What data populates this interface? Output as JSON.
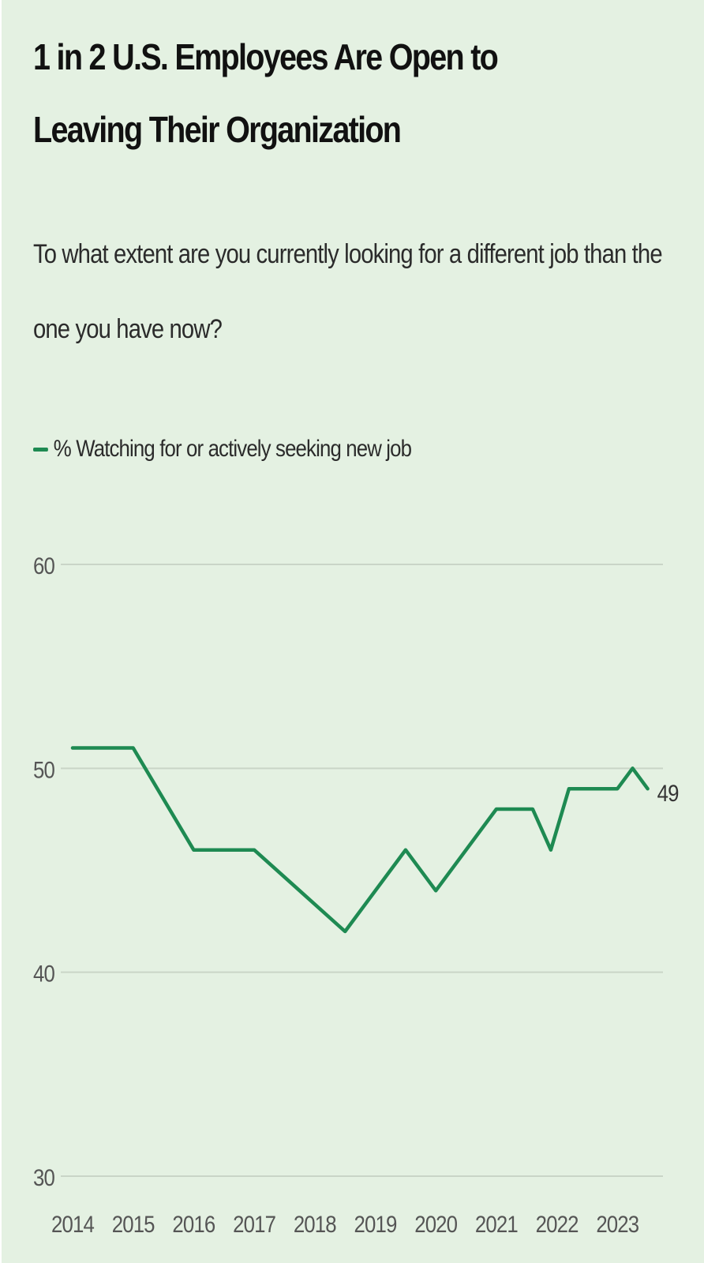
{
  "title": "1 in 2 U.S. Employees Are Open to Leaving Their Organization",
  "subtitle": "To what extent are you currently looking for a different job than the one you have now?",
  "colors": {
    "background": "#e4f1e2",
    "line": "#1e8a52",
    "grid": "#c9d5c7",
    "tick_text": "#555555"
  },
  "chart_data": {
    "type": "line",
    "title": "1 in 2 U.S. Employees Are Open to Leaving Their Organization",
    "subtitle": "To what extent are you currently looking for a different job than the one you have now?",
    "xlabel": "",
    "ylabel": "",
    "ylim": [
      30,
      60
    ],
    "xlim": [
      2014,
      2024
    ],
    "grid": true,
    "legend_position": "top-left",
    "y_ticks": [
      60,
      50,
      40,
      30
    ],
    "x_ticks": [
      "2014",
      "2015",
      "2016",
      "2017",
      "2018",
      "2019",
      "2020",
      "2021",
      "2022",
      "2023"
    ],
    "series": [
      {
        "name": "% Watching for or actively seeking new job",
        "color": "#1e8a52",
        "end_label": "49",
        "points": [
          {
            "x": 2014.0,
            "y": 51
          },
          {
            "x": 2015.0,
            "y": 51
          },
          {
            "x": 2016.0,
            "y": 46
          },
          {
            "x": 2017.0,
            "y": 46
          },
          {
            "x": 2018.5,
            "y": 42
          },
          {
            "x": 2019.5,
            "y": 46
          },
          {
            "x": 2020.0,
            "y": 44
          },
          {
            "x": 2021.0,
            "y": 48
          },
          {
            "x": 2021.6,
            "y": 48
          },
          {
            "x": 2021.9,
            "y": 46
          },
          {
            "x": 2022.2,
            "y": 49
          },
          {
            "x": 2023.0,
            "y": 49
          },
          {
            "x": 2023.25,
            "y": 50
          },
          {
            "x": 2023.5,
            "y": 49
          }
        ]
      }
    ]
  }
}
